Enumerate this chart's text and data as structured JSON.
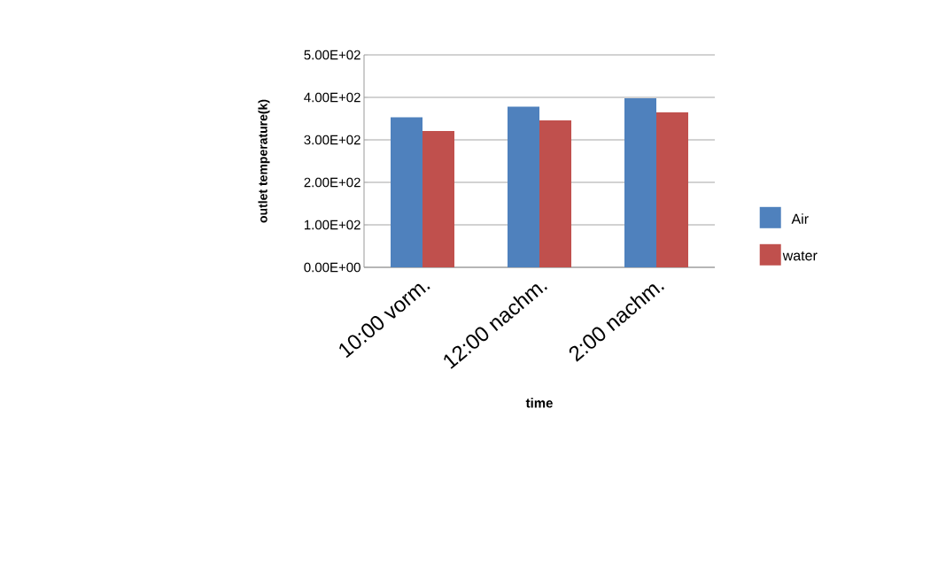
{
  "chart_data": {
    "type": "bar",
    "xlabel": "time",
    "ylabel": "outlet temperature(k)",
    "categories": [
      "10:00 vorm.",
      "12:00 nachm.",
      "2:00 nachm."
    ],
    "series": [
      {
        "name": "Air",
        "color": "#4f81bd",
        "values": [
          353,
          378,
          398
        ]
      },
      {
        "name": "water",
        "color": "#c0504d",
        "values": [
          321,
          346,
          365
        ]
      }
    ],
    "ylim": [
      0,
      500
    ],
    "yticks": [
      {
        "value": 0,
        "label": "0.00E+00"
      },
      {
        "value": 100,
        "label": "1.00E+02"
      },
      {
        "value": 200,
        "label": "2.00E+02"
      },
      {
        "value": 300,
        "label": "3.00E+02"
      },
      {
        "value": 400,
        "label": "4.00E+02"
      },
      {
        "value": 500,
        "label": "5.00E+02"
      }
    ],
    "grid": "y",
    "legend": "right"
  }
}
